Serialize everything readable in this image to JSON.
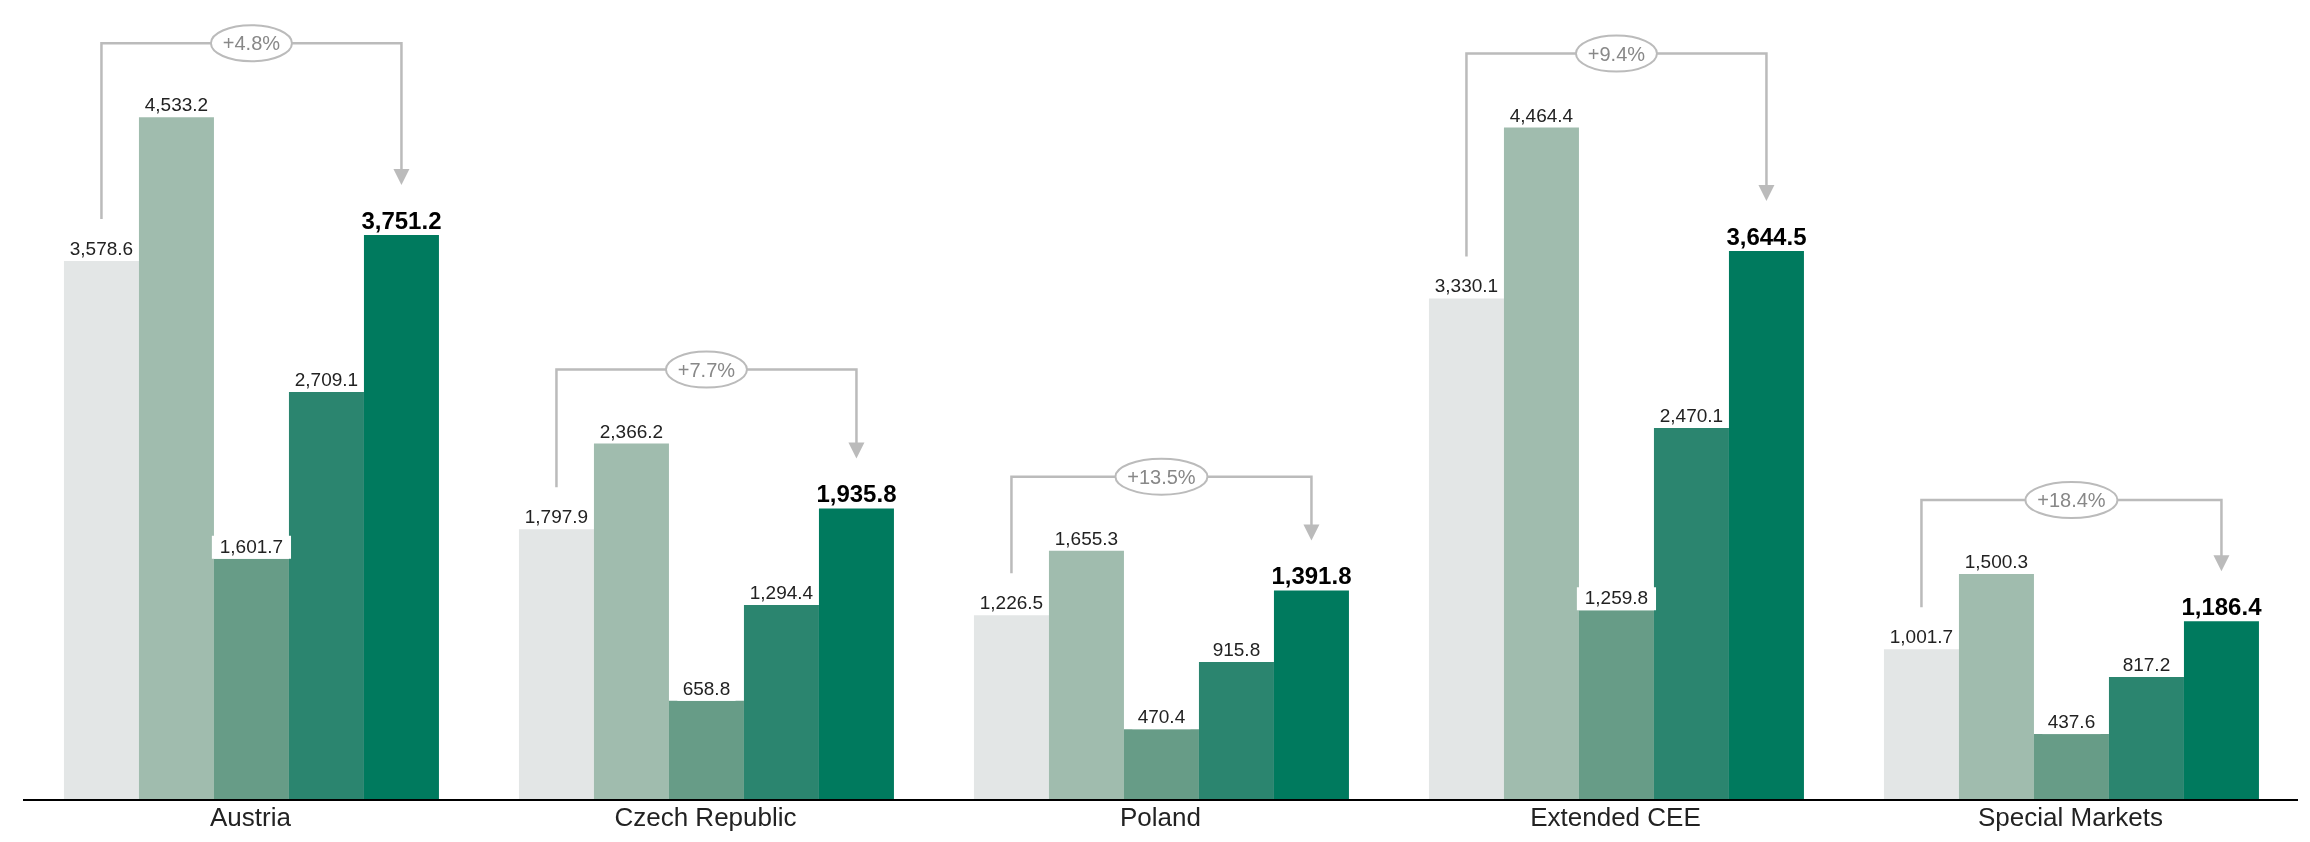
{
  "chart_data": {
    "type": "bar",
    "categories": [
      "Austria",
      "Czech Republic",
      "Poland",
      "Extended CEE",
      "Special Markets"
    ],
    "series": [
      {
        "color": "#e3e6e6",
        "values": [
          3578.6,
          1797.9,
          1226.5,
          3330.1,
          1001.7
        ],
        "value_labels": [
          "3,578.6",
          "1,797.9",
          "1,226.5",
          "3,330.1",
          "1,001.7"
        ]
      },
      {
        "color": "#a0bcae",
        "values": [
          4533.2,
          2366.2,
          1655.3,
          4464.4,
          1500.3
        ],
        "value_labels": [
          "4,533.2",
          "2,366.2",
          "1,655.3",
          "4,464.4",
          "1,500.3"
        ]
      },
      {
        "color": "#679c87",
        "values": [
          1601.7,
          658.8,
          470.4,
          1259.8,
          437.6
        ],
        "value_labels": [
          "1,601.7",
          "658.8",
          "470.4",
          "1,259.8",
          "437.6"
        ]
      },
      {
        "color": "#2b856f",
        "values": [
          2709.1,
          1294.4,
          915.8,
          2470.1,
          817.2
        ],
        "value_labels": [
          "2,709.1",
          "1,294.4",
          "915.8",
          "2,470.1",
          "817.2"
        ]
      },
      {
        "color": "#007a5e",
        "values": [
          3751.2,
          1935.8,
          1391.8,
          3644.5,
          1186.4
        ],
        "value_labels": [
          "3,751.2",
          "1,935.8",
          "1,391.8",
          "3,644.5",
          "1,186.4"
        ]
      }
    ],
    "annotations": [
      "+4.8%",
      "+7.7%",
      "+13.5%",
      "+9.4%",
      "+18.4%"
    ]
  }
}
